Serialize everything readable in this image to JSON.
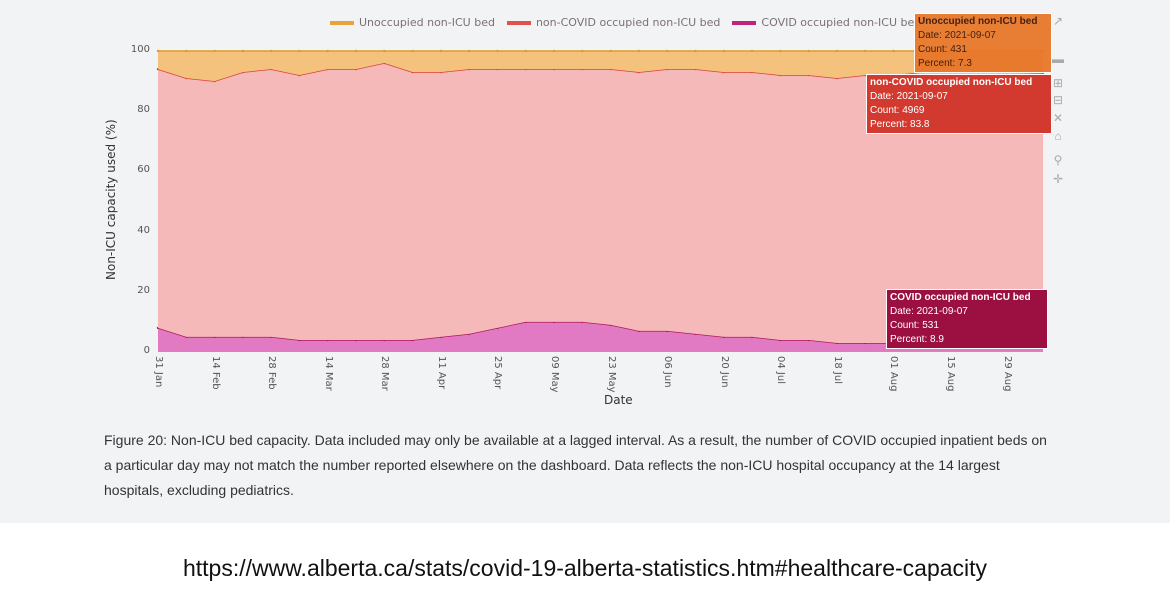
{
  "chart_data": {
    "type": "area",
    "stacked": true,
    "xlabel": "Date",
    "ylabel": "Non-ICU capacity used (%)",
    "ylim": [
      0,
      100
    ],
    "yticks": [
      "0",
      "20",
      "40",
      "60",
      "80",
      "100"
    ],
    "xtick_labels": [
      "31 Jan",
      "14 Feb",
      "28 Feb",
      "14 Mar",
      "28 Mar",
      "11 Apr",
      "25 Apr",
      "09 May",
      "23 May",
      "06 Jun",
      "20 Jun",
      "04 Jul",
      "18 Jul",
      "01 Aug",
      "15 Aug",
      "29 Aug"
    ],
    "xtick_dates": [
      "2021-01-31",
      "2021-02-14",
      "2021-02-28",
      "2021-03-14",
      "2021-03-28",
      "2021-04-11",
      "2021-04-25",
      "2021-05-09",
      "2021-05-23",
      "2021-06-06",
      "2021-06-20",
      "2021-07-04",
      "2021-07-18",
      "2021-08-01",
      "2021-08-15",
      "2021-08-29"
    ],
    "x": [
      "2021-01-31",
      "2021-02-07",
      "2021-02-14",
      "2021-02-21",
      "2021-02-28",
      "2021-03-07",
      "2021-03-14",
      "2021-03-21",
      "2021-03-28",
      "2021-04-04",
      "2021-04-11",
      "2021-04-18",
      "2021-04-25",
      "2021-05-02",
      "2021-05-09",
      "2021-05-16",
      "2021-05-23",
      "2021-05-30",
      "2021-06-06",
      "2021-06-13",
      "2021-06-20",
      "2021-06-27",
      "2021-07-04",
      "2021-07-11",
      "2021-07-18",
      "2021-07-25",
      "2021-08-01",
      "2021-08-08",
      "2021-08-15",
      "2021-08-22",
      "2021-08-29",
      "2021-09-07"
    ],
    "legend_position": "top",
    "series": [
      {
        "name": "Unoccupied non-ICU bed",
        "color": "#f5c27e",
        "values": [
          6,
          9,
          10,
          7,
          6,
          8,
          6,
          6,
          4,
          7,
          7,
          6,
          6,
          6,
          6,
          6,
          6,
          7,
          6,
          6,
          7,
          7,
          8,
          8,
          9,
          8,
          8,
          7,
          7,
          7,
          7,
          7.3
        ]
      },
      {
        "name": "non-COVID occupied non-ICU bed",
        "color": "#f4b9b8",
        "values": [
          86,
          86,
          85,
          88,
          89,
          88,
          90,
          90,
          92,
          89,
          88,
          88,
          86,
          84,
          84,
          84,
          85,
          86,
          87,
          88,
          88,
          88,
          88,
          88,
          88,
          89,
          89,
          88,
          86,
          85,
          85,
          83.8
        ]
      },
      {
        "name": "COVID occupied non-ICU bed",
        "color": "#e27ac3",
        "values": [
          8,
          5,
          5,
          5,
          5,
          4,
          4,
          4,
          4,
          4,
          5,
          6,
          8,
          10,
          10,
          10,
          9,
          7,
          7,
          6,
          5,
          5,
          4,
          4,
          3,
          3,
          3,
          5,
          7,
          8,
          8,
          8.9
        ]
      }
    ]
  },
  "tooltips": {
    "unoccupied": {
      "title": "Unoccupied non-ICU bed",
      "date": "Date: 2021-09-07",
      "count": "Count: 431",
      "percent": "Percent: 7.3"
    },
    "noncovid": {
      "title": "non-COVID occupied non-ICU bed",
      "date": "Date: 2021-09-07",
      "count": "Count: 4969",
      "percent": "Percent: 83.8"
    },
    "covid": {
      "title": "COVID occupied non-ICU bed",
      "date": "Date: 2021-09-07",
      "count": "Count: 531",
      "percent": "Percent: 8.9"
    }
  },
  "caption": "Figure 20: Non-ICU bed capacity. Data included may only be available at a lagged interval. As a result, the number of COVID occupied inpatient beds on a particular day may not match the number reported elsewhere on the dashboard. Data reflects the non-ICU hospital occupancy at the 14 largest hospitals, excluding pediatrics.",
  "source_url": "https://www.alberta.ca/stats/covid-19-alberta-statistics.htm#healthcare-capacity"
}
